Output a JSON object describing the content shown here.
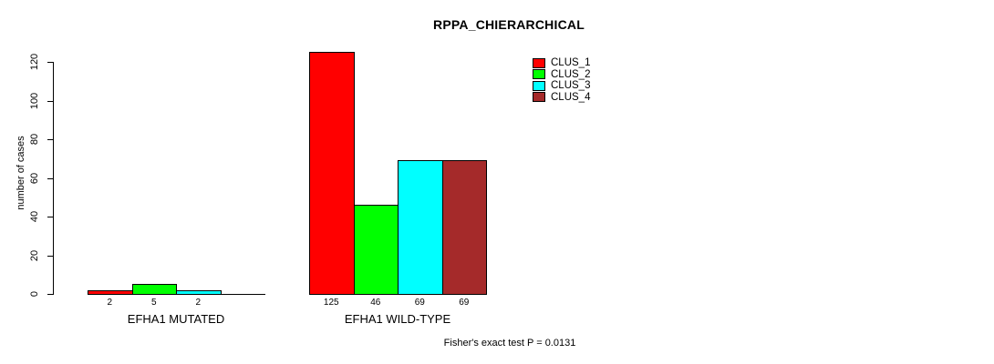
{
  "chart_data": {
    "type": "bar",
    "title": "RPPA_CHIERARCHICAL",
    "xlabel": "",
    "ylabel": "number of cases",
    "categories": [
      "EFHA1 MUTATED",
      "EFHA1 WILD-TYPE"
    ],
    "series": [
      {
        "name": "CLUS_1",
        "color": "#ff0000",
        "values": [
          2,
          125
        ],
        "labels": [
          "2",
          "125"
        ]
      },
      {
        "name": "CLUS_2",
        "color": "#00ff00",
        "values": [
          5,
          46
        ],
        "labels": [
          "5",
          "46"
        ]
      },
      {
        "name": "CLUS_3",
        "color": "#00ffff",
        "values": [
          2,
          69
        ],
        "labels": [
          "2",
          "69"
        ]
      },
      {
        "name": "CLUS_4",
        "color": "#a52a2a",
        "values": [
          0,
          69
        ],
        "labels": [
          "",
          "69"
        ]
      }
    ],
    "yticks": [
      0,
      20,
      40,
      60,
      80,
      100,
      120
    ],
    "ylim": [
      0,
      125
    ],
    "grid": false,
    "legend_position": "top-right",
    "annotation": "Fisher's exact test P = 0.0131"
  }
}
